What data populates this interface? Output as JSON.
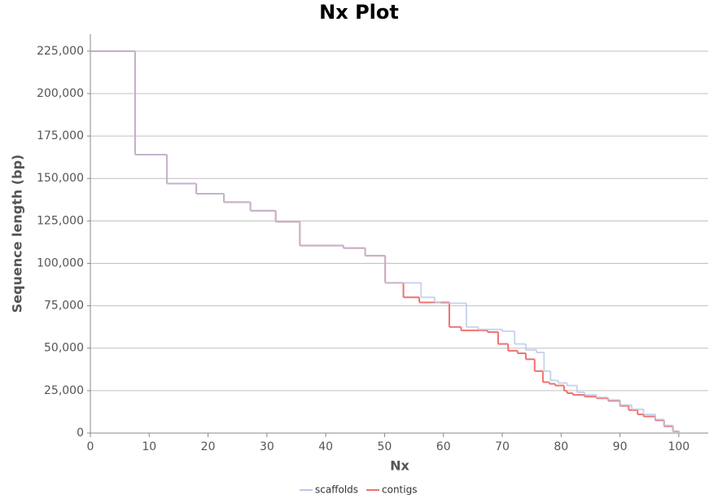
{
  "chart_data": {
    "type": "step",
    "title": "Nx Plot",
    "x_label": "Nx",
    "y_label": "Sequence length (bp)",
    "xlim": [
      0,
      105
    ],
    "ylim": [
      0,
      235000
    ],
    "xticks": [
      0,
      10,
      20,
      30,
      40,
      50,
      60,
      70,
      80,
      90,
      100
    ],
    "yticks": [
      0,
      {
        "value": 25000,
        "label": "25,000"
      },
      {
        "value": 50000,
        "label": "50,000"
      },
      {
        "value": 75000,
        "label": "75,000"
      },
      {
        "value": 100000,
        "label": "100,000"
      },
      {
        "value": 125000,
        "label": "125,000"
      },
      {
        "value": 150000,
        "label": "150,000"
      },
      {
        "value": 175000,
        "label": "175,000"
      },
      {
        "value": 200000,
        "label": "200,000"
      },
      {
        "value": 225000,
        "label": "225,000"
      }
    ],
    "grid": true,
    "legend": "bottom",
    "series": [
      {
        "name": "contigs",
        "color": "#f07070",
        "x": [
          0,
          7.6,
          13,
          18,
          22.7,
          27.2,
          31.5,
          35.6,
          43,
          46.7,
          50.1,
          53.2,
          55.9,
          61,
          63,
          67.5,
          69.3,
          71,
          72.6,
          74,
          75.5,
          76.9,
          78,
          79,
          80.5,
          81,
          82,
          84,
          86,
          88,
          90,
          91.5,
          93,
          94,
          96,
          97.5,
          99,
          100
        ],
        "values": [
          225000,
          164000,
          147000,
          141000,
          136000,
          131000,
          124500,
          110500,
          109000,
          104500,
          88500,
          80000,
          77000,
          62500,
          60500,
          59500,
          52500,
          48500,
          47000,
          43500,
          36500,
          30000,
          29000,
          28000,
          25000,
          23500,
          22500,
          21500,
          20500,
          19000,
          16000,
          13500,
          11000,
          9800,
          7500,
          4000,
          1000,
          1000
        ]
      },
      {
        "name": "scaffolds",
        "color": "#b8c8e8",
        "x": [
          0,
          7.6,
          13,
          18,
          22.7,
          27.2,
          31.5,
          35.6,
          43,
          46.7,
          50.1,
          56.2,
          58.5,
          59.5,
          63.9,
          65.9,
          70,
          72.1,
          74,
          75.8,
          77.1,
          78.2,
          79.5,
          81,
          82.7,
          84,
          86,
          88,
          90,
          92,
          94,
          96,
          97.5,
          99,
          100
        ],
        "values": [
          225000,
          164000,
          147000,
          141000,
          136000,
          131000,
          124500,
          110500,
          109000,
          104500,
          88500,
          80000,
          77000,
          76500,
          62500,
          61000,
          60000,
          52500,
          49000,
          47500,
          36500,
          31000,
          29500,
          28000,
          24000,
          22500,
          21000,
          19500,
          16500,
          14000,
          11000,
          8000,
          4500,
          1000,
          1000
        ]
      }
    ]
  }
}
